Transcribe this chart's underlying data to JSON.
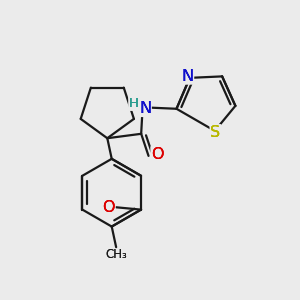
{
  "background_color": "#ebebeb",
  "bond_color": "#1a1a1a",
  "bond_width": 1.6,
  "fig_w": 3.0,
  "fig_h": 3.0,
  "dpi": 100,
  "xlim": [
    0,
    1
  ],
  "ylim": [
    0,
    1
  ]
}
